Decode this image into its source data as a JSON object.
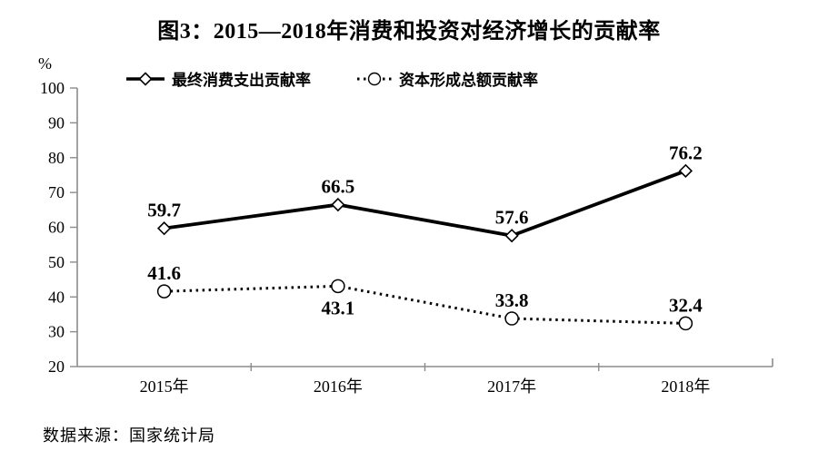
{
  "title": "图3：2015—2018年消费和投资对经济增长的贡献率",
  "y_axis_unit": "%",
  "source": "数据来源：国家统计局",
  "colors": {
    "series": "#000000",
    "axis": "#8c8c8c",
    "text": "#000000",
    "marker_fill": "#ffffff"
  },
  "legend": [
    {
      "label": "最终消费支出贡献率",
      "marker": "diamond",
      "line": "solid"
    },
    {
      "label": "资本形成总额贡献率",
      "marker": "circle",
      "line": "dotted"
    }
  ],
  "chart_data": {
    "type": "line",
    "categories": [
      "2015年",
      "2016年",
      "2017年",
      "2018年"
    ],
    "series": [
      {
        "name": "最终消费支出贡献率",
        "values": [
          59.7,
          66.5,
          57.6,
          76.2
        ],
        "marker": "diamond",
        "line_style": "solid",
        "label_positions": [
          "above",
          "above",
          "above",
          "above"
        ]
      },
      {
        "name": "资本形成总额贡献率",
        "values": [
          41.6,
          43.1,
          33.8,
          32.4
        ],
        "marker": "circle",
        "line_style": "dotted",
        "label_positions": [
          "above",
          "below",
          "above",
          "above"
        ]
      }
    ],
    "ylim": [
      20,
      100
    ],
    "ytick_step": 10,
    "grid": false,
    "legend_position": "top",
    "xlabel": "",
    "ylabel": "%"
  }
}
